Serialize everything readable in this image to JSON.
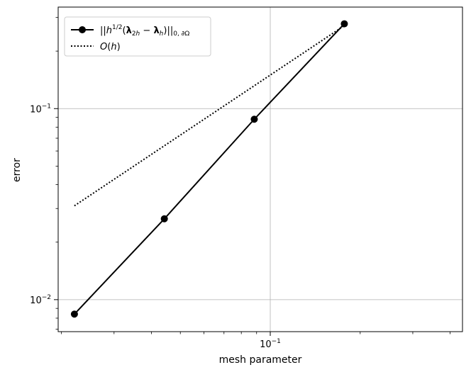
{
  "chart_data": {
    "type": "line",
    "xscale": "log",
    "yscale": "log",
    "xlim": [
      0.0195,
      0.44
    ],
    "ylim": [
      0.0068,
      0.34
    ],
    "xlabel": "mesh parameter",
    "ylabel": "error",
    "grid": true,
    "legend_position": "upper left",
    "x_ticks": [
      {
        "value": 0.1,
        "base": "10",
        "exp": "−1"
      }
    ],
    "y_ticks": [
      {
        "value": 0.01,
        "base": "10",
        "exp": "−2"
      },
      {
        "value": 0.1,
        "base": "10",
        "exp": "−1"
      }
    ],
    "series": [
      {
        "name": "||h^{1/2}(λ_{2h} − λ_h)||_{0,∂Ω}",
        "style": "solid",
        "marker": "circle",
        "color": "#000000",
        "x": [
          0.0221,
          0.0442,
          0.0884,
          0.177
        ],
        "y": [
          0.0084,
          0.0265,
          0.088,
          0.278
        ]
      },
      {
        "name": "O(h)",
        "style": "dotted",
        "marker": "none",
        "color": "#000000",
        "x": [
          0.0221,
          0.177
        ],
        "y": [
          0.031,
          0.272
        ]
      }
    ]
  }
}
